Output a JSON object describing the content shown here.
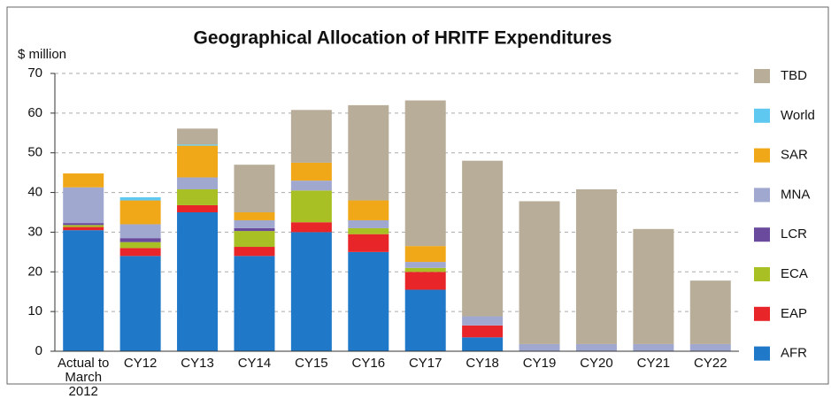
{
  "chart_data": {
    "type": "stacked_bar",
    "title": "Geographical Allocation of HRITF Expenditures",
    "y_label": "$ million",
    "categories": [
      "Actual to March 2012",
      "CY12",
      "CY13",
      "CY14",
      "CY15",
      "CY16",
      "CY17",
      "CY18",
      "CY19",
      "CY20",
      "CY21",
      "CY22"
    ],
    "series": [
      {
        "name": "AFR",
        "color": "#1f78c8",
        "values": [
          30.5,
          24,
          35,
          24,
          30,
          25,
          15.5,
          3.5,
          0,
          0,
          0,
          0
        ]
      },
      {
        "name": "EAP",
        "color": "#e8262a",
        "values": [
          0.8,
          2,
          1.8,
          2.3,
          2.5,
          4.5,
          4.5,
          3,
          0,
          0,
          0,
          0
        ]
      },
      {
        "name": "ECA",
        "color": "#a8c023",
        "values": [
          0.5,
          1.5,
          4,
          4,
          8,
          1.5,
          1,
          0,
          0,
          0,
          0,
          0
        ]
      },
      {
        "name": "LCR",
        "color": "#6a4a9c",
        "values": [
          0.5,
          1,
          0,
          0.7,
          0,
          0,
          0,
          0,
          0,
          0,
          0,
          0
        ]
      },
      {
        "name": "MNA",
        "color": "#a0a8d0",
        "values": [
          9,
          3.5,
          3,
          2,
          2.5,
          2,
          1.5,
          2.3,
          1.8,
          1.8,
          1.8,
          1.8
        ]
      },
      {
        "name": "SAR",
        "color": "#f0a818",
        "values": [
          3.5,
          6,
          8,
          2,
          4.5,
          5,
          4,
          0,
          0,
          0,
          0,
          0
        ]
      },
      {
        "name": "World",
        "color": "#5ec8f0",
        "values": [
          0,
          0.8,
          0.3,
          0,
          0,
          0,
          0,
          0,
          0,
          0,
          0,
          0
        ]
      },
      {
        "name": "TBD",
        "color": "#b8ad98",
        "values": [
          0,
          0,
          4,
          12,
          13.3,
          24,
          36.7,
          39.2,
          36,
          39,
          29,
          16
        ]
      }
    ],
    "ylim": [
      0,
      70
    ],
    "yticks": [
      0,
      10,
      20,
      30,
      40,
      50,
      60,
      70
    ],
    "grid": true
  }
}
